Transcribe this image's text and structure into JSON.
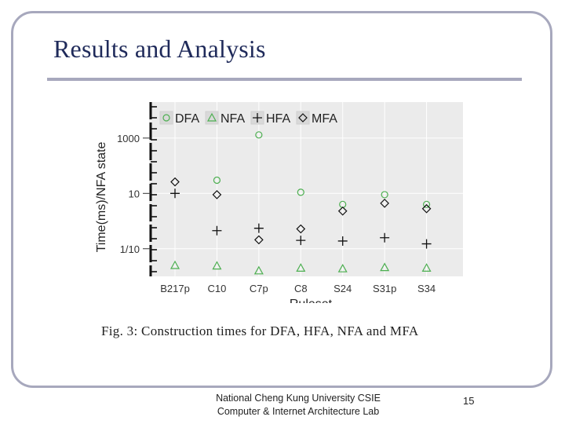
{
  "slide": {
    "title": "Results and Analysis",
    "caption": "Fig. 3: Construction times for DFA, HFA, NFA and MFA",
    "footer_line1": "National Cheng Kung University CSIE",
    "footer_line2": "Computer & Internet Architecture Lab",
    "page_number": "15"
  },
  "chart_data": {
    "type": "scatter",
    "xlabel": "Ruleset",
    "ylabel": "Time(ms)/NFA state",
    "y_scale": "log",
    "ylim": [
      0.01,
      20000
    ],
    "y_ticks": [
      {
        "value": 1000,
        "label": "1000"
      },
      {
        "value": 10,
        "label": "10"
      },
      {
        "value": 0.1,
        "label": "1/10"
      }
    ],
    "categories": [
      "B217p",
      "C10",
      "C7p",
      "C8",
      "S24",
      "S31p",
      "S34"
    ],
    "legend_position": "top-left",
    "series": [
      {
        "name": "DFA",
        "marker": "circle",
        "color": "#4caf50",
        "values": [
          null,
          30,
          1300,
          11,
          4,
          9,
          4
        ]
      },
      {
        "name": "NFA",
        "marker": "triangle",
        "color": "#4caf50",
        "values": [
          0.025,
          0.024,
          0.016,
          0.02,
          0.019,
          0.021,
          0.02
        ]
      },
      {
        "name": "HFA",
        "marker": "plus",
        "color": "#111111",
        "values": [
          10,
          0.45,
          0.55,
          0.2,
          0.19,
          0.25,
          0.15
        ]
      },
      {
        "name": "MFA",
        "marker": "diamond",
        "color": "#111111",
        "values": [
          26,
          9,
          0.21,
          0.52,
          2.3,
          4.4,
          2.8
        ]
      }
    ]
  }
}
